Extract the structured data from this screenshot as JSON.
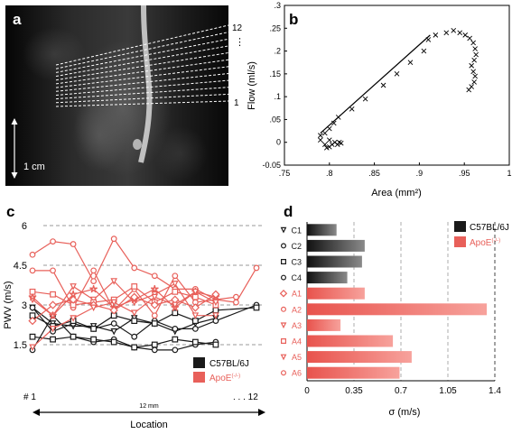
{
  "colors": {
    "control": "#1a1a1a",
    "apoe": "#e8605a",
    "grid": "#888888"
  },
  "panel_a": {
    "label": "a",
    "slice_top_label": "12",
    "slice_dots": "⋮",
    "slice_bottom_label": "1",
    "scale_bar_label": "1 cm",
    "slice_count": 12
  },
  "panel_b": {
    "label": "b"
  },
  "panel_c": {
    "label": "c",
    "start_label": "# 1",
    "end_label": ". . . 12",
    "distance_label": "12 mm"
  },
  "panel_d": {
    "label": "d"
  },
  "chart_data": [
    {
      "id": "b",
      "type": "scatter",
      "xlabel": "Area (mm²)",
      "ylabel": "Flow (ml/s)",
      "xlim": [
        0.75,
        1.0
      ],
      "ylim": [
        -0.05,
        0.3
      ],
      "xticks": [
        ".75",
        ".8",
        ".85",
        ".9",
        ".95",
        "1"
      ],
      "xtick_values": [
        0.75,
        0.8,
        0.85,
        0.9,
        0.95,
        1.0
      ],
      "yticks": [
        "-0.05",
        "0",
        ".05",
        ".1",
        ".15",
        ".2",
        ".25",
        ".3"
      ],
      "ytick_values": [
        -0.05,
        0,
        0.05,
        0.1,
        0.15,
        0.2,
        0.25,
        0.3
      ],
      "grid": false,
      "points": [
        [
          0.79,
          0.015
        ],
        [
          0.795,
          0.02
        ],
        [
          0.8,
          0.03
        ],
        [
          0.805,
          0.042
        ],
        [
          0.81,
          0.055
        ],
        [
          0.825,
          0.073
        ],
        [
          0.84,
          0.095
        ],
        [
          0.86,
          0.125
        ],
        [
          0.875,
          0.15
        ],
        [
          0.89,
          0.175
        ],
        [
          0.905,
          0.2
        ],
        [
          0.91,
          0.225
        ],
        [
          0.918,
          0.235
        ],
        [
          0.93,
          0.24
        ],
        [
          0.938,
          0.245
        ],
        [
          0.945,
          0.24
        ],
        [
          0.951,
          0.235
        ],
        [
          0.956,
          0.228
        ],
        [
          0.96,
          0.218
        ],
        [
          0.962,
          0.205
        ],
        [
          0.963,
          0.192
        ],
        [
          0.961,
          0.18
        ],
        [
          0.958,
          0.168
        ],
        [
          0.96,
          0.155
        ],
        [
          0.962,
          0.145
        ],
        [
          0.961,
          0.132
        ],
        [
          0.958,
          0.122
        ],
        [
          0.955,
          0.115
        ],
        [
          0.79,
          0.005
        ],
        [
          0.795,
          -0.005
        ],
        [
          0.8,
          -0.01
        ],
        [
          0.803,
          -0.005
        ],
        [
          0.806,
          0.0
        ],
        [
          0.809,
          -0.005
        ],
        [
          0.811,
          0.0
        ],
        [
          0.813,
          -0.002
        ],
        [
          0.8,
          0.005
        ],
        [
          0.797,
          -0.012
        ]
      ],
      "fit_line": [
        [
          0.79,
          0.02
        ],
        [
          0.912,
          0.235
        ]
      ]
    },
    {
      "id": "c",
      "type": "line",
      "xlabel": "Location",
      "ylabel": "PWV (m/s)",
      "ylim": [
        0,
        6
      ],
      "yticks": [
        "1.5",
        "3",
        "4.5",
        "6"
      ],
      "ytick_values": [
        1.5,
        3,
        4.5,
        6
      ],
      "x": [
        1,
        2,
        3,
        4,
        5,
        6,
        7,
        8,
        9,
        10,
        11,
        12
      ],
      "legend": [
        "C57BL/6J",
        "ApoE(-/-)"
      ],
      "legend_labels": {
        "control": "C57BL/6J",
        "apoe": "ApoE",
        "apoe_sup": "(-/-)"
      },
      "series": [
        {
          "group": "control",
          "marker": "tri",
          "values": [
            2.9,
            2.3,
            2.2,
            2.2,
            2.0,
            2.5,
            2.3,
            2.0,
            2.3,
            2.5,
            null,
            null
          ]
        },
        {
          "group": "control",
          "marker": "circle",
          "values": [
            2.9,
            2.0,
            2.3,
            2.1,
            2.3,
            1.8,
            2.4,
            2.1,
            2.1,
            2.4,
            null,
            3.0
          ]
        },
        {
          "group": "control",
          "marker": "square",
          "values": [
            2.6,
            2.2,
            2.4,
            2.1,
            2.6,
            2.4,
            2.3,
            2.7,
            2.4,
            2.8,
            null,
            2.9
          ]
        },
        {
          "group": "control",
          "marker": "circle",
          "values": [
            1.3,
            2.6,
            1.8,
            1.6,
            1.7,
            1.4,
            1.3,
            1.3,
            1.5,
            1.6,
            null,
            null
          ]
        },
        {
          "group": "control",
          "marker": "square",
          "values": [
            1.8,
            1.7,
            1.8,
            1.7,
            1.6,
            1.4,
            1.5,
            1.7,
            1.6,
            1.5,
            null,
            null
          ]
        },
        {
          "group": "apoe",
          "marker": "circle",
          "values": [
            4.9,
            5.4,
            5.3,
            3.9,
            5.5,
            4.4,
            4.1,
            3.6,
            3.6,
            3.2,
            3.1,
            4.4
          ]
        },
        {
          "group": "apoe",
          "marker": "circle",
          "values": [
            4.3,
            4.3,
            2.9,
            4.3,
            2.8,
            3.6,
            2.6,
            4.1,
            3.1,
            3.2,
            3.3,
            null
          ]
        },
        {
          "group": "apoe",
          "marker": "tri",
          "values": [
            3.2,
            2.6,
            3.7,
            3.2,
            3.9,
            3.1,
            3.4,
            3.8,
            2.6,
            2.6,
            null,
            null
          ]
        },
        {
          "group": "apoe",
          "marker": "star",
          "values": [
            3.3,
            2.6,
            3.4,
            3.6,
            2.9,
            3.2,
            3.6,
            2.9,
            3.5,
            3.3,
            null,
            null
          ]
        },
        {
          "group": "apoe",
          "marker": "square",
          "values": [
            3.5,
            3.4,
            3.0,
            3.1,
            3.2,
            3.7,
            3.1,
            3.5,
            3.3,
            3.0,
            null,
            null
          ]
        },
        {
          "group": "apoe",
          "marker": "diamond",
          "values": [
            2.4,
            3.0,
            3.2,
            3.0,
            2.8,
            3.3,
            3.0,
            3.2,
            2.9,
            3.4,
            null,
            null
          ]
        },
        {
          "group": "apoe",
          "marker": "tri",
          "values": [
            1.4,
            2.1,
            2.5,
            2.9,
            3.1,
            2.7,
            3.3,
            3.0,
            3.5,
            3.1,
            null,
            null
          ]
        }
      ]
    },
    {
      "id": "d",
      "type": "bar",
      "orientation": "horizontal",
      "xlabel": "σ (m/s)",
      "xlim": [
        0,
        1.4
      ],
      "xticks": [
        "0",
        "0.35",
        "0.7",
        "1.05",
        "1.4"
      ],
      "xtick_values": [
        0,
        0.35,
        0.7,
        1.05,
        1.4
      ],
      "categories": [
        "C1",
        "C2",
        "C3",
        "C4",
        "A1",
        "A2",
        "A3",
        "A4",
        "A5",
        "A6"
      ],
      "markers": [
        "tri",
        "circle",
        "square",
        "circle",
        "diamond",
        "circle",
        "tri",
        "square",
        "tri",
        "circle"
      ],
      "groups": [
        "control",
        "control",
        "control",
        "control",
        "apoe",
        "apoe",
        "apoe",
        "apoe",
        "apoe",
        "apoe"
      ],
      "values": [
        0.22,
        0.43,
        0.41,
        0.3,
        0.43,
        1.34,
        0.25,
        0.64,
        0.78,
        0.69
      ],
      "legend": [
        "C57BL/6J",
        "ApoE(-/-)"
      ],
      "legend_labels": {
        "control": "C57BL/6J",
        "apoe": "ApoE",
        "apoe_sup": "(-/-)"
      }
    }
  ]
}
